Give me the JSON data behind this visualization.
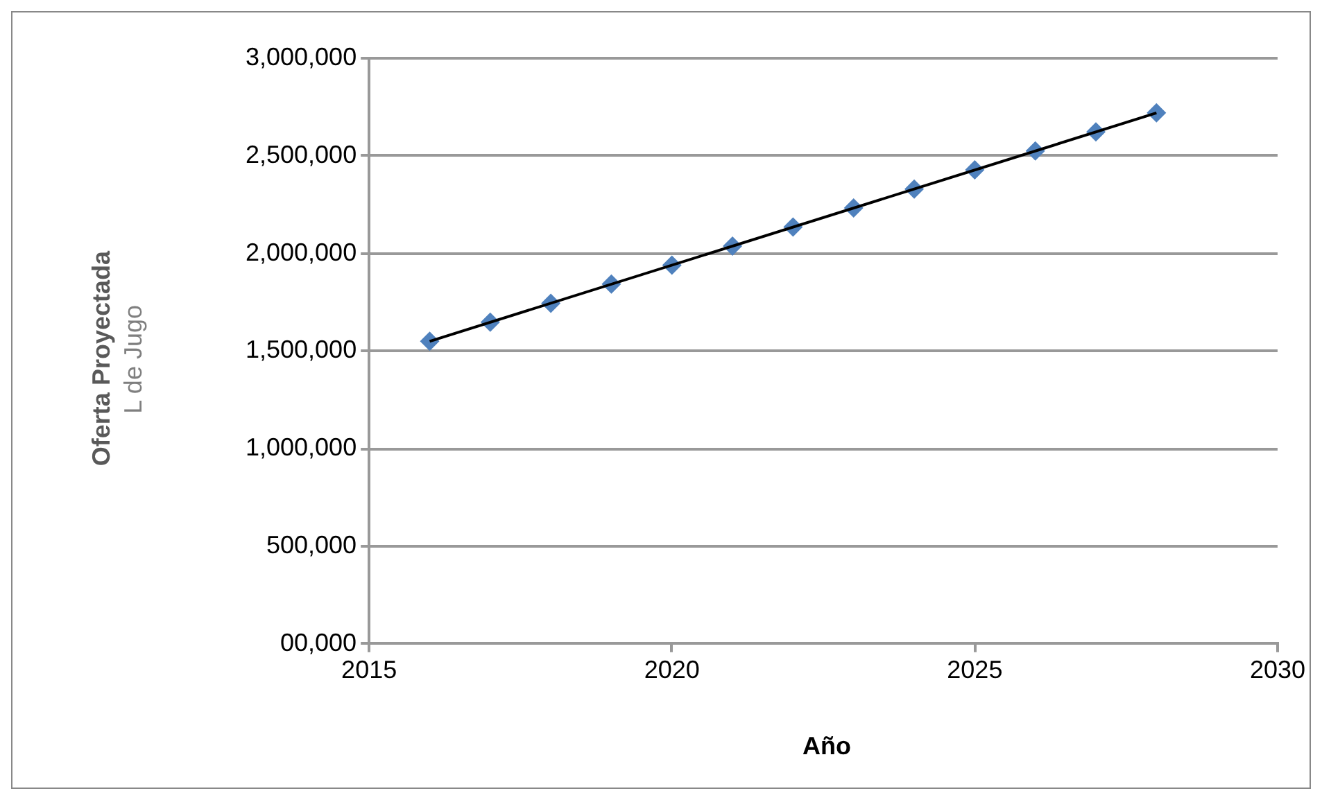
{
  "chart_data": {
    "type": "line",
    "xlabel": "Año",
    "ylabel": "Oferta Proyectada\nL de Jugo",
    "x": [
      2016,
      2017,
      2018,
      2019,
      2020,
      2021,
      2022,
      2023,
      2024,
      2025,
      2026,
      2027,
      2028
    ],
    "series": [
      {
        "type": "scatter",
        "color": "#4f81bd",
        "marker": "diamond",
        "values": [
          1550000,
          1648000,
          1745000,
          1843000,
          1940000,
          2038000,
          2135000,
          2233000,
          2330000,
          2428000,
          2525000,
          2623000,
          2720000
        ]
      },
      {
        "type": "line",
        "color": "#000000",
        "marker": "none",
        "x": [
          2016,
          2028
        ],
        "values": [
          1550000,
          2720000
        ]
      }
    ],
    "xlim": [
      2015,
      2030
    ],
    "xticks": [
      2015,
      2020,
      2025,
      2030
    ],
    "ylim": [
      0,
      3000000
    ],
    "yticks": [
      {
        "value": 0,
        "label": "00,000"
      },
      {
        "value": 500000,
        "label": "500,000"
      },
      {
        "value": 1000000,
        "label": "1,000,000"
      },
      {
        "value": 1500000,
        "label": "1,500,000"
      },
      {
        "value": 2000000,
        "label": "2,000,000"
      },
      {
        "value": 2500000,
        "label": "2,500,000"
      },
      {
        "value": 3000000,
        "label": "3,000,000"
      }
    ],
    "grid": "y",
    "legend": false
  }
}
